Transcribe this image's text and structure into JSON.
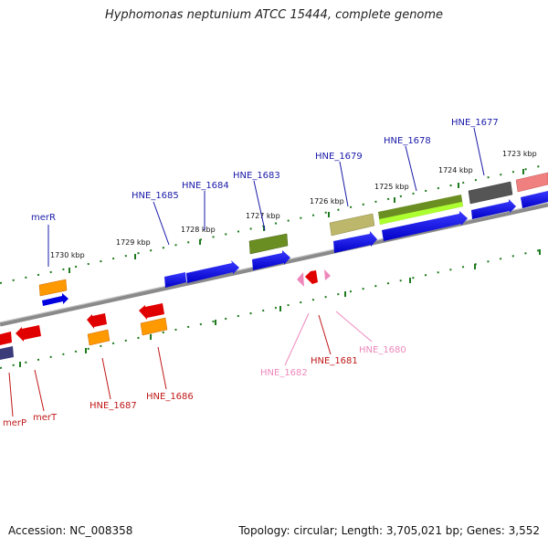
{
  "title": "Hyphomonas neptunium ATCC 15444, complete genome",
  "footer": {
    "accession": "Accession: NC_008358",
    "topology": "Topology: circular; Length: 3,705,021 bp; Genes: 3,552"
  },
  "colors": {
    "backbone": "#8a8a8a",
    "tick": "#1d7a1d",
    "label_forward": "#1a1aa8",
    "label_reverse": "#c01818",
    "label_pink": "#ee88bb"
  },
  "kbp_labels": [
    "1730 kbp",
    "1729 kbp",
    "1728 kbp",
    "1727 kbp",
    "1726 kbp",
    "1725 kbp",
    "1724 kbp",
    "1723 kbp"
  ],
  "forward_labels": [
    "merR",
    "HNE_1685",
    "HNE_1684",
    "HNE_1683",
    "HNE_1679",
    "HNE_1678",
    "HNE_1677"
  ],
  "reverse_labels": [
    "merP",
    "merT",
    "HNE_1687",
    "HNE_1686",
    "HNE_1682",
    "HNE_1681",
    "HNE_1680"
  ]
}
